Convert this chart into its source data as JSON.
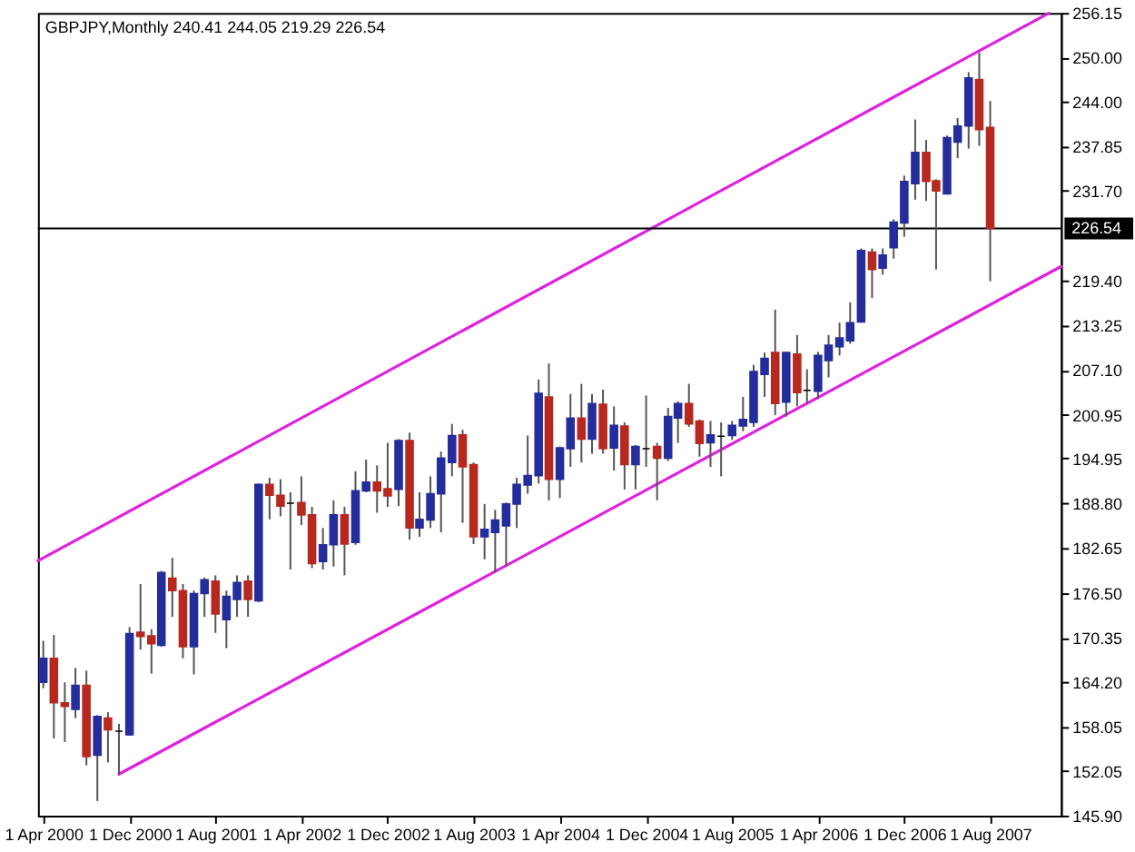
{
  "chart_data": {
    "type": "candlestick",
    "title": "GBPJPY,Monthly 240.41 244.05 219.29 226.54",
    "x": [
      "2000-04",
      "2000-05",
      "2000-06",
      "2000-07",
      "2000-08",
      "2000-09",
      "2000-10",
      "2000-11",
      "2000-12",
      "2001-01",
      "2001-02",
      "2001-03",
      "2001-04",
      "2001-05",
      "2001-06",
      "2001-07",
      "2001-08",
      "2001-09",
      "2001-10",
      "2001-11",
      "2001-12",
      "2002-01",
      "2002-02",
      "2002-03",
      "2002-04",
      "2002-05",
      "2002-06",
      "2002-07",
      "2002-08",
      "2002-09",
      "2002-10",
      "2002-11",
      "2002-12",
      "2003-01",
      "2003-02",
      "2003-03",
      "2003-04",
      "2003-05",
      "2003-06",
      "2003-07",
      "2003-08",
      "2003-09",
      "2003-10",
      "2003-11",
      "2003-12",
      "2004-01",
      "2004-02",
      "2004-03",
      "2004-04",
      "2004-05",
      "2004-06",
      "2004-07",
      "2004-08",
      "2004-09",
      "2004-10",
      "2004-11",
      "2004-12",
      "2005-01",
      "2005-02",
      "2005-03",
      "2005-04",
      "2005-05",
      "2005-06",
      "2005-07",
      "2005-08",
      "2005-09",
      "2005-10",
      "2005-11",
      "2005-12",
      "2006-01",
      "2006-02",
      "2006-03",
      "2006-04",
      "2006-05",
      "2006-06",
      "2006-07",
      "2006-08",
      "2006-09",
      "2006-10",
      "2006-11",
      "2006-12",
      "2007-01",
      "2007-02",
      "2007-03",
      "2007-04",
      "2007-05",
      "2007-06",
      "2007-07",
      "2007-08"
    ],
    "ohlc": [
      [
        164.2,
        169.9,
        163.4,
        167.5
      ],
      [
        167.5,
        170.7,
        156.5,
        161.4
      ],
      [
        161.4,
        164.2,
        156.0,
        160.9
      ],
      [
        160.5,
        166.2,
        159.3,
        163.8
      ],
      [
        163.8,
        165.8,
        152.8,
        154.0
      ],
      [
        154.2,
        159.7,
        147.9,
        159.5
      ],
      [
        159.3,
        160.1,
        153.2,
        157.7
      ],
      [
        157.5,
        158.5,
        151.6,
        157.5
      ],
      [
        157.0,
        171.8,
        156.9,
        170.9
      ],
      [
        171.1,
        177.7,
        168.7,
        170.5
      ],
      [
        170.6,
        171.5,
        165.4,
        169.5
      ],
      [
        169.3,
        179.5,
        169.1,
        179.3
      ],
      [
        178.5,
        181.3,
        173.2,
        176.8
      ],
      [
        176.8,
        177.7,
        167.5,
        169.1
      ],
      [
        169.1,
        176.8,
        165.3,
        176.4
      ],
      [
        176.4,
        178.6,
        173.2,
        178.3
      ],
      [
        178.1,
        178.9,
        171.0,
        173.6
      ],
      [
        172.8,
        176.8,
        168.9,
        176.0
      ],
      [
        175.6,
        178.9,
        173.2,
        177.9
      ],
      [
        178.1,
        178.9,
        173.2,
        175.6
      ],
      [
        175.4,
        191.5,
        175.2,
        191.4
      ],
      [
        191.4,
        192.3,
        186.6,
        189.9
      ],
      [
        189.9,
        192.1,
        187.0,
        188.4
      ],
      [
        188.8,
        190.3,
        179.7,
        188.8
      ],
      [
        188.9,
        192.5,
        185.8,
        187.2
      ],
      [
        187.2,
        188.3,
        179.9,
        180.5
      ],
      [
        180.8,
        185.4,
        179.7,
        183.1
      ],
      [
        183.1,
        189.2,
        180.1,
        187.2
      ],
      [
        187.2,
        188.3,
        178.9,
        183.2
      ],
      [
        183.4,
        193.2,
        183.1,
        190.5
      ],
      [
        190.5,
        194.8,
        190.3,
        191.7
      ],
      [
        191.7,
        194.0,
        187.5,
        190.5
      ],
      [
        190.8,
        197.1,
        188.3,
        189.8
      ],
      [
        190.7,
        197.6,
        188.4,
        197.4
      ],
      [
        197.4,
        198.5,
        183.8,
        185.4
      ],
      [
        185.4,
        190.3,
        184.2,
        186.6
      ],
      [
        186.5,
        192.5,
        185.4,
        190.1
      ],
      [
        190.1,
        195.9,
        184.8,
        195.0
      ],
      [
        194.4,
        199.7,
        192.5,
        198.1
      ],
      [
        198.2,
        198.9,
        186.1,
        193.8
      ],
      [
        194.1,
        194.4,
        183.2,
        184.2
      ],
      [
        184.2,
        188.7,
        181.1,
        185.2
      ],
      [
        184.8,
        187.9,
        179.3,
        186.5
      ],
      [
        185.7,
        188.9,
        180.1,
        188.7
      ],
      [
        188.7,
        192.3,
        185.4,
        191.4
      ],
      [
        191.3,
        198.1,
        190.1,
        192.6
      ],
      [
        192.6,
        205.8,
        191.5,
        203.9
      ],
      [
        203.4,
        208.0,
        189.2,
        192.1
      ],
      [
        192.1,
        196.6,
        189.5,
        196.4
      ],
      [
        196.3,
        203.8,
        193.8,
        200.5
      ],
      [
        200.5,
        205.2,
        194.4,
        197.6
      ],
      [
        197.6,
        203.8,
        195.6,
        202.5
      ],
      [
        202.4,
        204.4,
        195.6,
        196.3
      ],
      [
        196.4,
        202.1,
        193.3,
        199.5
      ],
      [
        199.4,
        199.9,
        190.7,
        194.1
      ],
      [
        194.1,
        196.8,
        190.7,
        196.6
      ],
      [
        196.3,
        203.6,
        193.8,
        196.3
      ],
      [
        196.6,
        197.1,
        189.2,
        195.0
      ],
      [
        195.0,
        201.9,
        194.6,
        200.7
      ],
      [
        200.5,
        202.8,
        197.1,
        202.5
      ],
      [
        202.5,
        205.2,
        199.3,
        199.7
      ],
      [
        200.1,
        200.3,
        195.2,
        197.0
      ],
      [
        197.1,
        200.1,
        193.8,
        198.2
      ],
      [
        198.0,
        199.9,
        192.5,
        198.0
      ],
      [
        198.1,
        200.1,
        197.5,
        199.5
      ],
      [
        199.4,
        203.4,
        198.7,
        200.3
      ],
      [
        199.9,
        207.8,
        199.3,
        206.9
      ],
      [
        206.5,
        209.5,
        203.4,
        208.7
      ],
      [
        209.5,
        215.4,
        200.9,
        202.5
      ],
      [
        202.7,
        209.6,
        200.7,
        209.5
      ],
      [
        209.3,
        211.9,
        202.1,
        204.0
      ],
      [
        204.3,
        207.2,
        202.5,
        204.3
      ],
      [
        204.2,
        209.6,
        203.1,
        209.1
      ],
      [
        208.4,
        211.9,
        206.1,
        210.5
      ],
      [
        210.3,
        213.6,
        209.1,
        211.5
      ],
      [
        211.1,
        216.4,
        210.7,
        213.6
      ],
      [
        213.7,
        223.8,
        213.6,
        223.5
      ],
      [
        223.3,
        223.8,
        217.0,
        220.9
      ],
      [
        221.1,
        223.8,
        220.2,
        222.9
      ],
      [
        223.9,
        227.8,
        222.4,
        227.4
      ],
      [
        227.3,
        233.8,
        225.4,
        233.0
      ],
      [
        232.7,
        241.5,
        230.5,
        237.0
      ],
      [
        237.0,
        238.7,
        230.3,
        233.0
      ],
      [
        233.1,
        233.3,
        220.9,
        231.7
      ],
      [
        231.3,
        239.3,
        231.3,
        239.0
      ],
      [
        238.4,
        241.7,
        236.2,
        240.6
      ],
      [
        240.6,
        248.0,
        237.5,
        247.2
      ],
      [
        247.0,
        250.7,
        237.9,
        240.1
      ],
      [
        240.41,
        244.05,
        219.29,
        226.54
      ]
    ],
    "colors": [
      "#232d9c",
      "#b7281e",
      "#b7281e",
      "#232d9c",
      "#b7281e",
      "#232d9c",
      "#b7281e",
      "#000000",
      "#232d9c",
      "#b7281e",
      "#b7281e",
      "#232d9c",
      "#b7281e",
      "#b7281e",
      "#232d9c",
      "#232d9c",
      "#b7281e",
      "#232d9c",
      "#232d9c",
      "#b7281e",
      "#232d9c",
      "#b7281e",
      "#b7281e",
      "#000000",
      "#b7281e",
      "#b7281e",
      "#232d9c",
      "#232d9c",
      "#b7281e",
      "#232d9c",
      "#232d9c",
      "#b7281e",
      "#b7281e",
      "#232d9c",
      "#b7281e",
      "#232d9c",
      "#232d9c",
      "#232d9c",
      "#232d9c",
      "#b7281e",
      "#b7281e",
      "#232d9c",
      "#232d9c",
      "#232d9c",
      "#232d9c",
      "#232d9c",
      "#232d9c",
      "#b7281e",
      "#232d9c",
      "#232d9c",
      "#b7281e",
      "#232d9c",
      "#b7281e",
      "#232d9c",
      "#b7281e",
      "#232d9c",
      "#000000",
      "#b7281e",
      "#232d9c",
      "#232d9c",
      "#b7281e",
      "#b7281e",
      "#232d9c",
      "#000000",
      "#232d9c",
      "#232d9c",
      "#232d9c",
      "#232d9c",
      "#b7281e",
      "#232d9c",
      "#b7281e",
      "#000000",
      "#232d9c",
      "#232d9c",
      "#232d9c",
      "#232d9c",
      "#232d9c",
      "#b7281e",
      "#232d9c",
      "#232d9c",
      "#232d9c",
      "#232d9c",
      "#b7281e",
      "#b7281e",
      "#232d9c",
      "#232d9c",
      "#232d9c",
      "#b7281e",
      "#b7281e"
    ],
    "series": [
      {
        "type": "line",
        "color": "#e020e0",
        "x": [
          "2000-03-17",
          "2008-01-13"
        ],
        "values": [
          180.9,
          256.1
        ]
      },
      {
        "type": "line",
        "color": "#e020e0",
        "x": [
          "2000-11",
          "2008-02-17"
        ],
        "values": [
          151.6,
          221.3
        ]
      }
    ],
    "ref_lines": [
      {
        "axis": "y",
        "value": 226.54,
        "label": "226.54",
        "color": "#000000"
      }
    ],
    "xlim": [
      "2000-03-17",
      "2008-02-17"
    ],
    "xticks": [
      {
        "value": "2000-04-01",
        "label": "1 Apr 2000"
      },
      {
        "value": "2000-12-01",
        "label": "1 Dec 2000"
      },
      {
        "value": "2001-08-01",
        "label": "1 Aug 2001"
      },
      {
        "value": "2002-04-01",
        "label": "1 Apr 2002"
      },
      {
        "value": "2002-12-01",
        "label": "1 Dec 2002"
      },
      {
        "value": "2003-08-01",
        "label": "1 Aug 2003"
      },
      {
        "value": "2004-04-01",
        "label": "1 Apr 2004"
      },
      {
        "value": "2004-12-01",
        "label": "1 Dec 2004"
      },
      {
        "value": "2005-08-01",
        "label": "1 Aug 2005"
      },
      {
        "value": "2006-04-01",
        "label": "1 Apr 2006"
      },
      {
        "value": "2006-12-01",
        "label": "1 Dec 2006"
      },
      {
        "value": "2007-08-01",
        "label": "1 Aug 2007"
      }
    ],
    "ylim": [
      145.9,
      256.15
    ],
    "yticks": [
      {
        "value": 145.9,
        "label": "145.90"
      },
      152.05,
      158.05,
      {
        "value": 164.2,
        "label": "164.20"
      },
      170.35,
      {
        "value": 176.5,
        "label": "176.50"
      },
      182.65,
      {
        "value": 188.8,
        "label": "188.80"
      },
      194.95,
      200.95,
      {
        "value": 207.1,
        "label": "207.10"
      },
      213.25,
      {
        "value": 219.4,
        "label": "219.40"
      },
      {
        "value": 231.7,
        "label": "231.70"
      },
      237.85,
      {
        "value": 244,
        "label": "244.00"
      },
      {
        "value": 250,
        "label": "250.00"
      },
      256.15
    ]
  }
}
